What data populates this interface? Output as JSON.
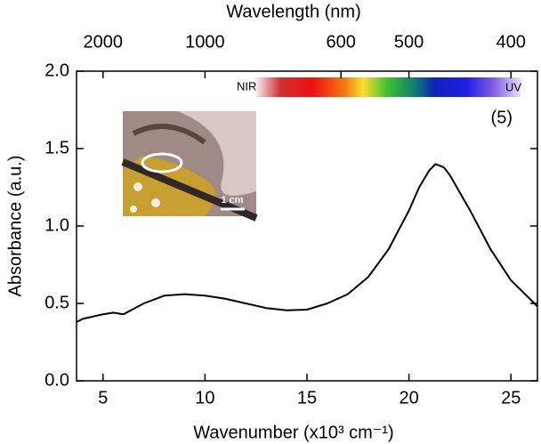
{
  "chart_data": {
    "type": "line",
    "x_label": "Wavenumber (x10³ cm⁻¹)",
    "y_label": "Absorbance (a.u.)",
    "x2_label": "Wavelength (nm)",
    "annotation": "(5)",
    "spectrum_left": "NIR",
    "spectrum_right": "UV",
    "scale_label": "1 cm",
    "xlim": [
      3.7,
      26.3
    ],
    "xticks": [
      5,
      10,
      15,
      20,
      25
    ],
    "x2ticks": [
      2000,
      1000,
      600,
      500,
      400
    ],
    "ylim": [
      0,
      2
    ],
    "yticks": [
      {
        "value": 0,
        "label": "0.0"
      },
      {
        "value": 0.5,
        "label": "0.5"
      },
      {
        "value": 1,
        "label": "1.0"
      },
      {
        "value": 1.5,
        "label": "1.5"
      },
      {
        "value": 2,
        "label": "2.0"
      }
    ],
    "series": [
      {
        "color": "#000000",
        "x": [
          3.7,
          4,
          5,
          5.5,
          6,
          7,
          8,
          9,
          10,
          11,
          12,
          13,
          14,
          15,
          16,
          17,
          18,
          19,
          20,
          20.5,
          21,
          21.3,
          21.7,
          22,
          23,
          24,
          25,
          26,
          26.3
        ],
        "values": [
          0.38,
          0.4,
          0.43,
          0.44,
          0.43,
          0.5,
          0.55,
          0.56,
          0.55,
          0.53,
          0.5,
          0.47,
          0.455,
          0.46,
          0.5,
          0.56,
          0.67,
          0.85,
          1.1,
          1.25,
          1.36,
          1.4,
          1.38,
          1.33,
          1.1,
          0.85,
          0.65,
          0.52,
          0.48
        ]
      }
    ]
  }
}
